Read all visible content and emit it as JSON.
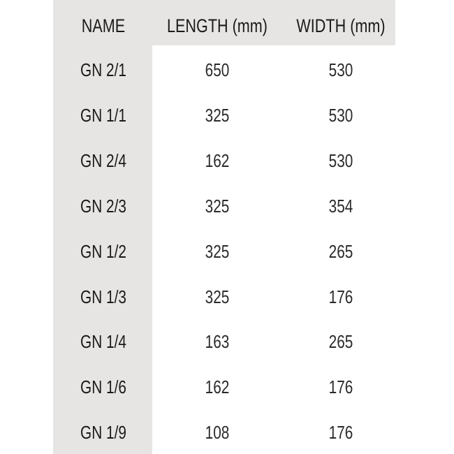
{
  "headers": [
    "NAME",
    "LENGTH (mm)",
    "WIDTH (mm)"
  ],
  "rows": [
    {
      "name": "GN 2/1",
      "length": "650",
      "width": "530"
    },
    {
      "name": "GN 1/1",
      "length": "325",
      "width": "530"
    },
    {
      "name": "GN 2/4",
      "length": "162",
      "width": "530"
    },
    {
      "name": "GN 2/3",
      "length": "325",
      "width": "354"
    },
    {
      "name": "GN 1/2",
      "length": "325",
      "width": "265"
    },
    {
      "name": "GN 1/3",
      "length": "325",
      "width": "176"
    },
    {
      "name": "GN 1/4",
      "length": "163",
      "width": "265"
    },
    {
      "name": "GN 1/6",
      "length": "162",
      "width": "176"
    },
    {
      "name": "GN 1/9",
      "length": "108",
      "width": "176"
    }
  ],
  "colors": {
    "shade": "#e6e5e3",
    "text": "#1a1a1a"
  }
}
